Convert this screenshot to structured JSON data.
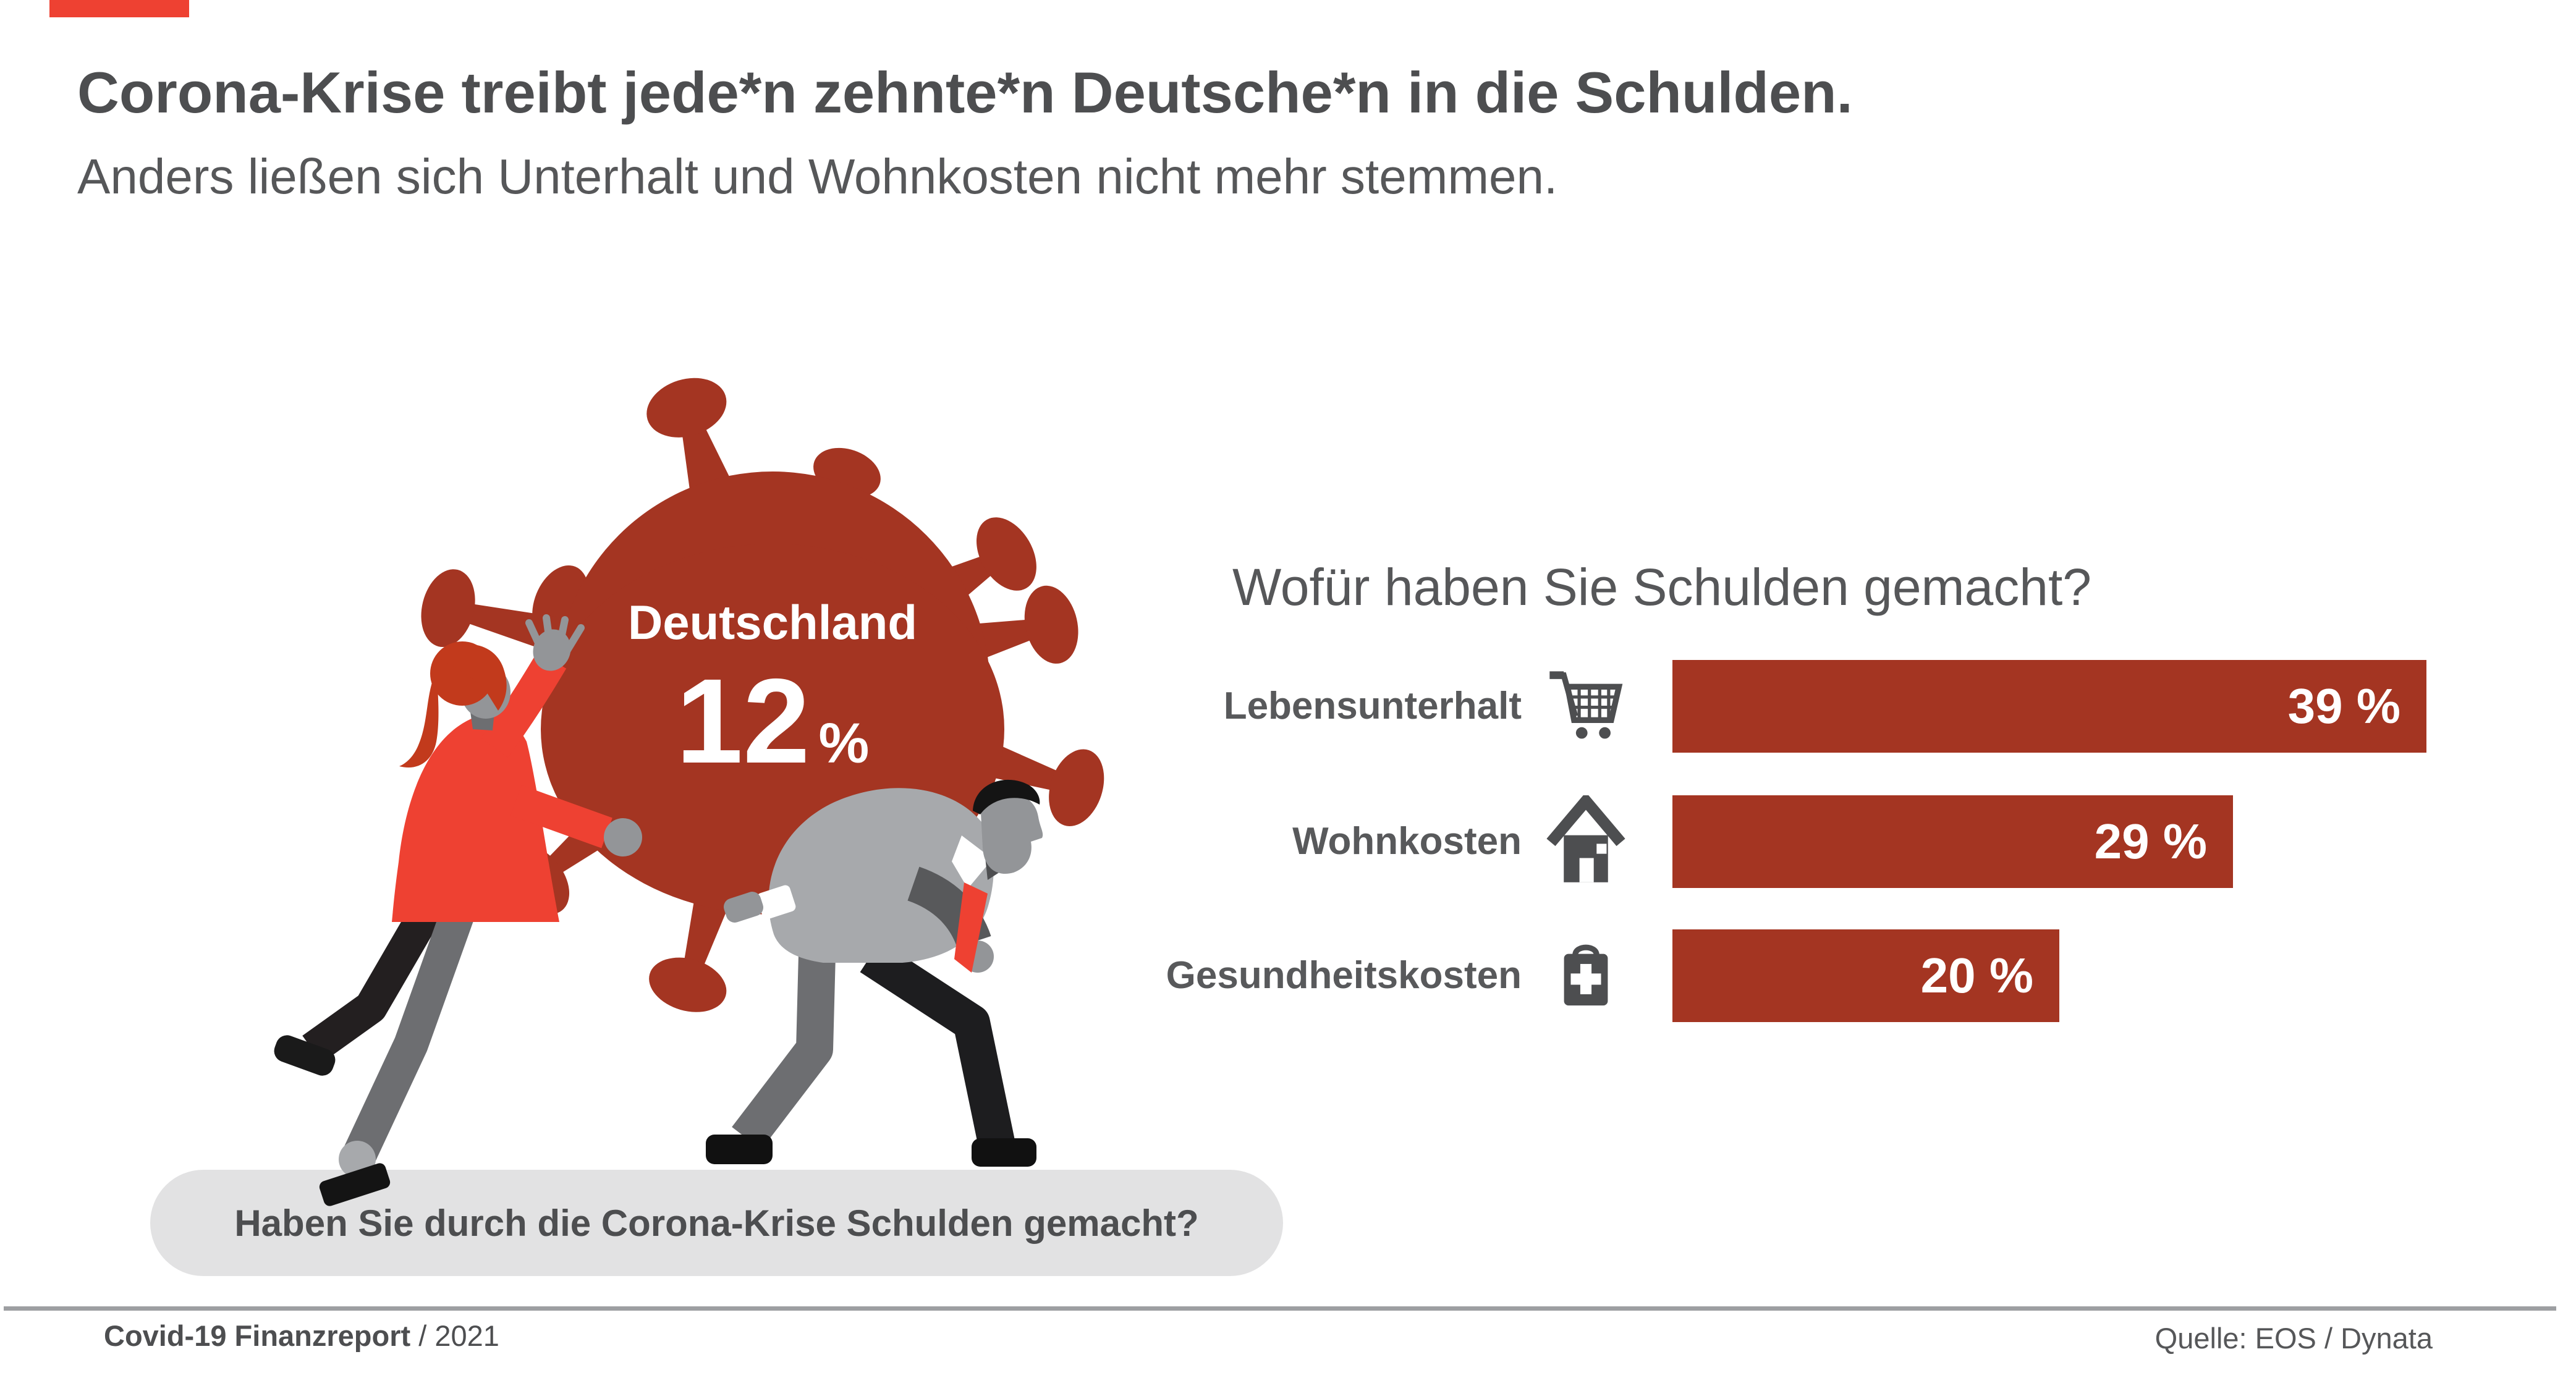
{
  "header": {
    "title": "Corona-Krise treibt jede*n zehnte*n Deutsche*n in die Schulden.",
    "subtitle": "Anders ließen sich Unterhalt und Wohnkosten nicht mehr stemmen."
  },
  "illustration": {
    "country_label": "Deutschland",
    "percent_value": "12",
    "percent_unit": "%",
    "caption": "Haben Sie durch die Corona-Krise Schulden gemacht?",
    "description": "two-people-carrying-coronavirus"
  },
  "chart_data": {
    "type": "bar",
    "orientation": "horizontal",
    "title": "Wofür haben Sie Schulden gemacht?",
    "categories": [
      "Lebensunterhalt",
      "Wohnkosten",
      "Gesundheitskosten"
    ],
    "values": [
      39,
      29,
      20
    ],
    "value_labels": [
      "39 %",
      "29 %",
      "20 %"
    ],
    "unit": "%",
    "xlim": [
      0,
      39
    ],
    "icons": [
      "shopping-cart",
      "house",
      "first-aid-kit"
    ],
    "bar_color": "#A43522",
    "value_label_color": "#FFFFFF",
    "grid": false,
    "legend": false
  },
  "footer": {
    "report_title": "Covid-19 Finanzreport",
    "report_year": " / 2021",
    "source": "Quelle: EOS / Dynata"
  },
  "colors": {
    "dark_red": "#A43522",
    "bright_red": "#EE4132",
    "text_dark": "#4D4E50",
    "text_gray": "#58595B",
    "pill_bg": "#E2E2E3",
    "divider": "#9D9FA2"
  }
}
